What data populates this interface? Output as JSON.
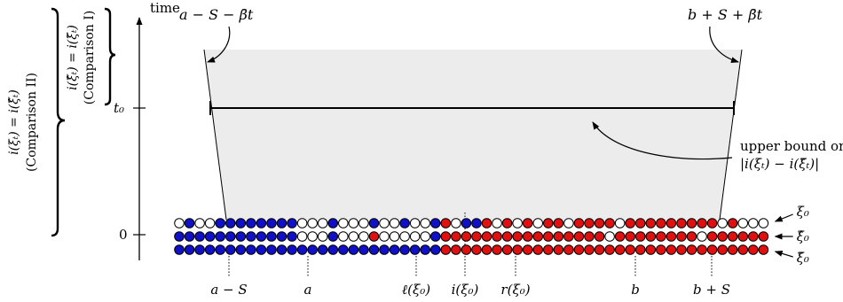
{
  "axis": {
    "label": "time",
    "tick_t0": "t₀",
    "tick_zero": "0"
  },
  "labels": {
    "top_left": "a − S − β̄t",
    "top_right": "b + S + β̄t",
    "upper_bound_line1": "upper bound on",
    "upper_bound_line2": "|i(ξₜ) − i(ξ̃ₜ)|"
  },
  "braces": {
    "comparison_I_formula": "i(ξ̂ₜ) = i(ξ̃ₜ)",
    "comparison_I_name": "(Comparison I)",
    "comparison_II_formula": "i(ξₜ) = i(ξ̂ₜ)",
    "comparison_II_name": "(Comparison II)"
  },
  "row_labels": [
    "ξ₀",
    "ξ̂₀",
    "ξ̃₀"
  ],
  "bottom_labels": [
    "a − S",
    "a",
    "ℓ(ξ₀)",
    "i(ξ₀)",
    "r(ξ₀)",
    "b",
    "b + S"
  ],
  "particle_rows": [
    "WBWWBBBBBBBBWWWBWWWBWWBWWBRWBBRWRWRWRRWRRRRWRRRRRRRRRWRWWW",
    "BBBBBBBBBBBBWWWBWWWRWWWWWBRRRRRRRRRRRRRRRRWRRRRRRRRWRRRRRR",
    "BBBBBBBBBBBBBBBBBBBBBBBBBBRRRRRRRRRRRRRRRRRRRRRRRRRRRRRRRR"
  ],
  "colors": {
    "blue": "#1010c8",
    "red": "#e01010",
    "white": "#ffffff",
    "region": "#ececec"
  }
}
